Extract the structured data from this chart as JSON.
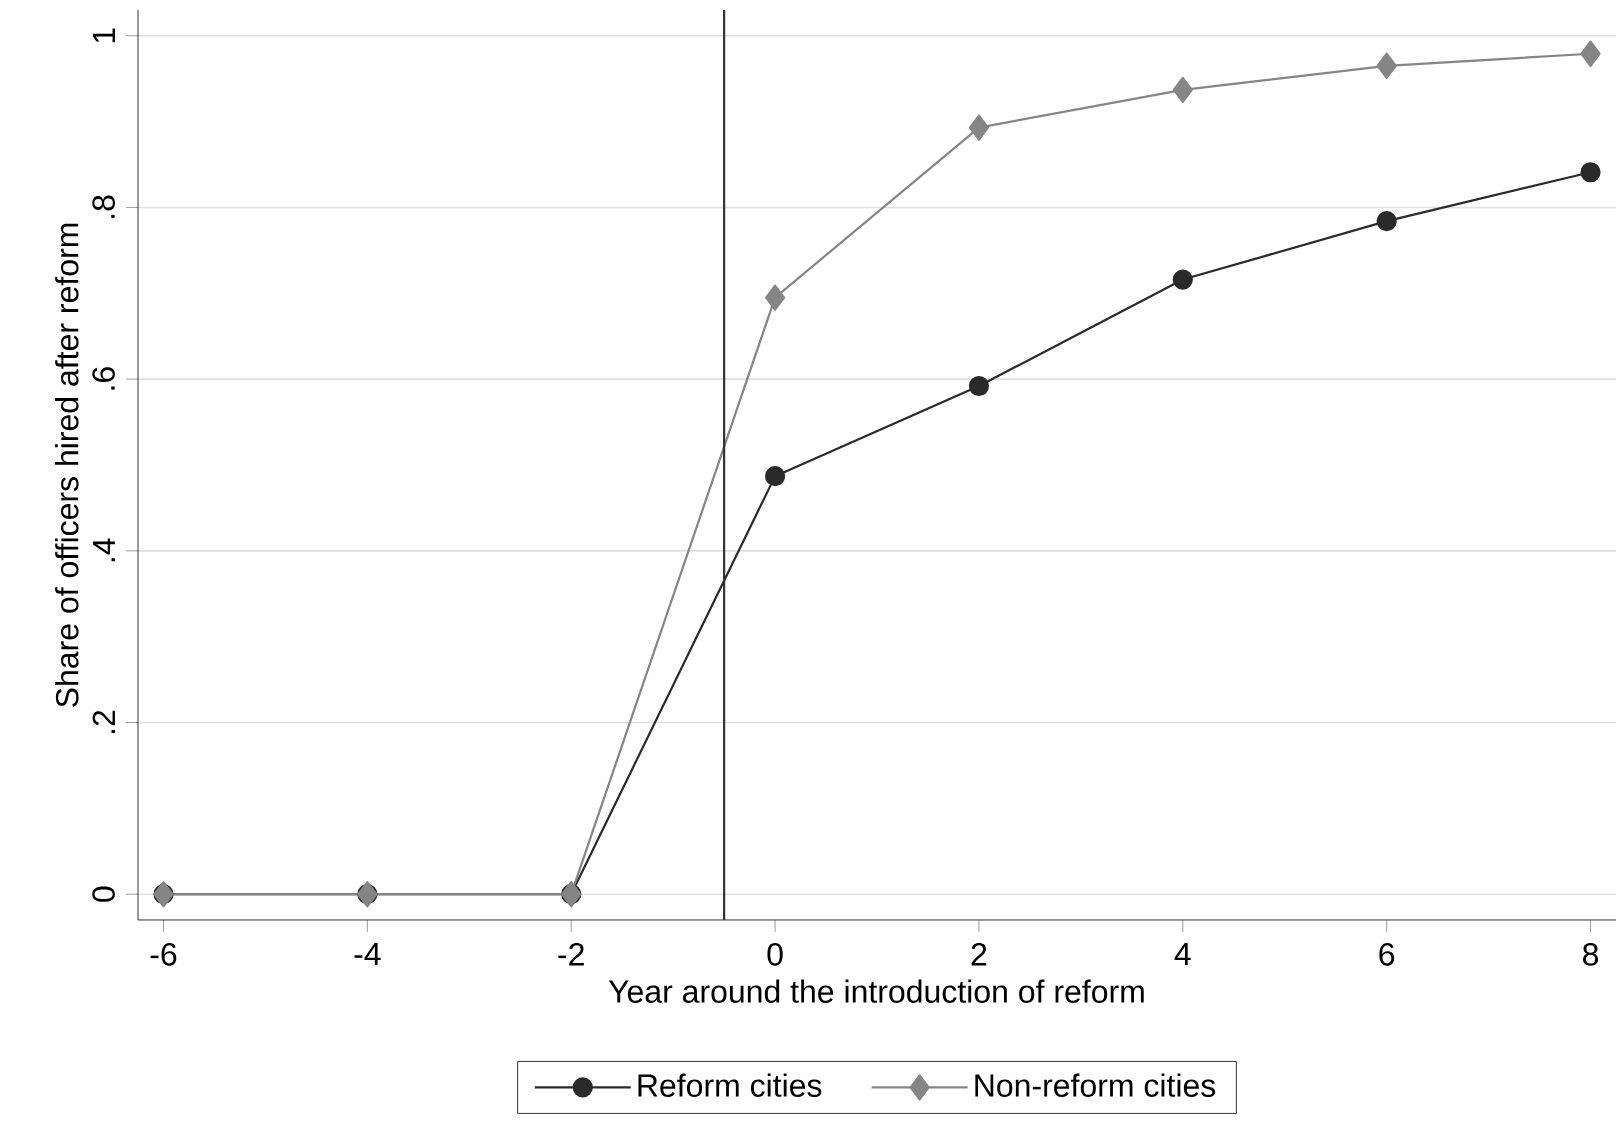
{
  "chart_data": {
    "type": "line",
    "xlabel": "Year around the introduction of reform",
    "ylabel": "Share of officers hired after  reform",
    "x": [
      -6,
      -4,
      -2,
      0,
      2,
      4,
      6,
      8
    ],
    "series": [
      {
        "name": "Reform cities",
        "color": "#2a2a2a",
        "marker": "circle",
        "values": [
          0,
          0,
          0,
          0.487,
          0.592,
          0.716,
          0.784,
          0.841
        ]
      },
      {
        "name": "Non-reform cities",
        "color": "#858585",
        "marker": "diamond",
        "values": [
          0,
          0,
          0,
          0.695,
          0.893,
          0.937,
          0.965,
          0.979
        ]
      }
    ],
    "xlim": [
      -6.25,
      8.25
    ],
    "ylim": [
      -0.03,
      1.03
    ],
    "xticks": [
      -6,
      -4,
      -2,
      0,
      2,
      4,
      6,
      8
    ],
    "yticks": [
      0,
      {
        "value": 0.2,
        "label": ".2"
      },
      {
        "value": 0.4,
        "label": ".4"
      },
      {
        "value": 0.6,
        "label": ".6"
      },
      {
        "value": 0.8,
        "label": ".8"
      },
      1
    ],
    "ref_lines": [
      {
        "axis": "x",
        "value": -0.5,
        "color": "#333333"
      }
    ],
    "grid": "y",
    "legend": "bottom"
  }
}
